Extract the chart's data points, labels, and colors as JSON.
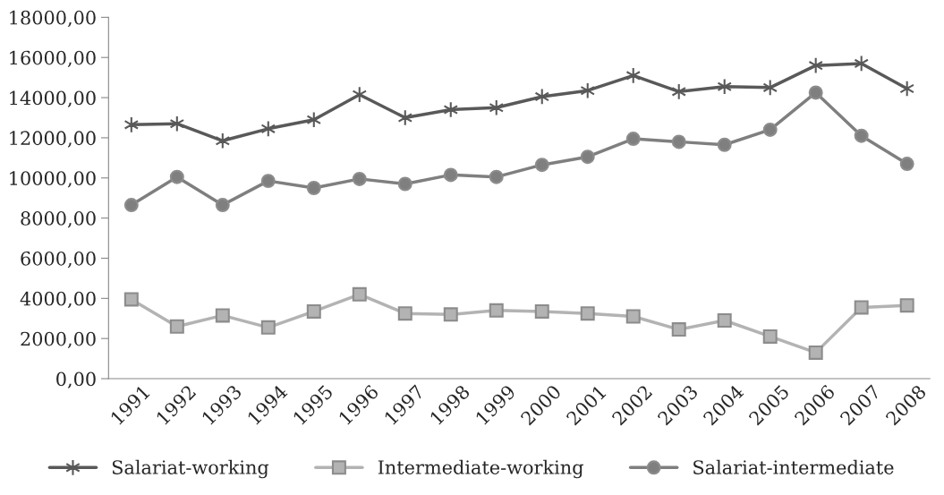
{
  "chart_data": {
    "type": "line",
    "categories": [
      "1991",
      "1992",
      "1993",
      "1994",
      "1995",
      "1996",
      "1997",
      "1998",
      "1999",
      "2000",
      "2001",
      "2002",
      "2003",
      "2004",
      "2005",
      "2006",
      "2007",
      "2008"
    ],
    "series": [
      {
        "name": "Salariat-working",
        "color": "#595959",
        "marker": "cross",
        "values": [
          12650,
          12700,
          11850,
          12450,
          12900,
          14150,
          13000,
          13400,
          13500,
          14050,
          14350,
          15100,
          14300,
          14550,
          14500,
          15600,
          15700,
          14450
        ]
      },
      {
        "name": "Intermediate-working",
        "color": "#b3b3b3",
        "marker": "square",
        "values": [
          3950,
          2600,
          3150,
          2550,
          3350,
          4200,
          3250,
          3200,
          3400,
          3350,
          3250,
          3100,
          2450,
          2900,
          2100,
          1300,
          3550,
          3650
        ]
      },
      {
        "name": "Salariat-intermediate",
        "color": "#7f7f7f",
        "marker": "circle",
        "values": [
          8650,
          10050,
          8650,
          9850,
          9500,
          9950,
          9700,
          10150,
          10050,
          10650,
          11050,
          11950,
          11800,
          11650,
          12400,
          14250,
          12100,
          10700
        ]
      }
    ],
    "ylim": [
      0,
      18000
    ],
    "yticks": [
      {
        "value": 0,
        "label": "0,00"
      },
      {
        "value": 2000,
        "label": "2000,00"
      },
      {
        "value": 4000,
        "label": "4000,00"
      },
      {
        "value": 6000,
        "label": "6000,00"
      },
      {
        "value": 8000,
        "label": "8000,00"
      },
      {
        "value": 10000,
        "label": "10000,00"
      },
      {
        "value": 12000,
        "label": "12000,00"
      },
      {
        "value": 14000,
        "label": "14000,00"
      },
      {
        "value": 16000,
        "label": "16000,00"
      },
      {
        "value": 18000,
        "label": "18000,00"
      }
    ],
    "grid": false,
    "legend": "bottom",
    "line_style": "solid"
  }
}
